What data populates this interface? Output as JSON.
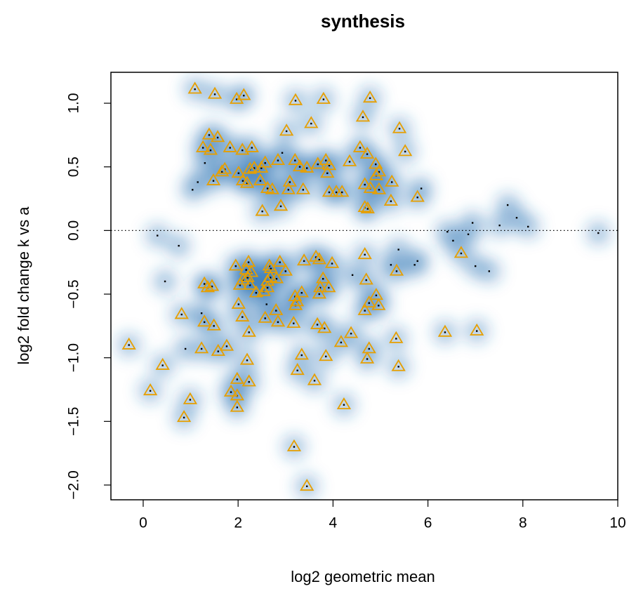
{
  "chart_data": {
    "type": "scatter",
    "title": "synthesis",
    "x_label": "log2 geometric mean",
    "y_label": "log2 fold change k vs a",
    "xlim": [
      -0.68,
      10.0
    ],
    "ylim": [
      -2.116,
      1.243
    ],
    "xticks": [
      0,
      2,
      4,
      6,
      8,
      10
    ],
    "yticks": [
      {
        "value": 1.0,
        "label": "1.0"
      },
      {
        "value": 0.5,
        "label": "0.5"
      },
      {
        "value": 0.0,
        "label": "0.0"
      },
      {
        "value": -0.5,
        "label": "−0.5"
      },
      {
        "value": -1.0,
        "label": "−1.0"
      },
      {
        "value": -1.5,
        "label": "−1.5"
      },
      {
        "value": -2.0,
        "label": "−2.0"
      }
    ],
    "hline": 0,
    "density_color": "#2a74b5",
    "series": [
      {
        "marker": "triangle",
        "color": "#e69f00",
        "x": [
          1.09,
          1.51,
          1.97,
          2.12,
          3.21,
          3.8,
          4.78,
          4.63,
          5.4,
          3.54,
          3.02,
          1.39,
          1.57,
          5.52,
          1.26,
          1.42,
          1.83,
          2.09,
          2.29,
          4.57,
          4.72,
          4.9,
          4.35,
          3.85,
          3.68,
          3.92,
          3.3,
          3.45,
          3.2,
          2.84,
          2.57,
          2.49,
          2.34,
          2.25,
          2.01,
          1.72,
          1.66,
          1.48,
          2.19,
          2.1,
          2.47,
          3.88,
          4.97,
          4.91,
          4.79,
          4.67,
          4.97,
          5.24,
          2.62,
          2.72,
          3.09,
          3.06,
          3.37,
          3.92,
          4.07,
          4.19,
          2.9,
          2.51,
          4.67,
          4.73,
          5.22,
          5.78,
          6.7,
          4.67,
          3.64,
          3.71,
          3.39,
          2.88,
          1.95,
          2.22,
          2.17,
          2.28,
          2.69,
          2.66,
          3.98,
          5.34,
          2.2,
          2.1,
          2.25,
          2.04,
          2.68,
          2.62,
          2.81,
          3.0,
          3.79,
          3.91,
          3.73,
          3.71,
          4.7,
          1.29,
          1.45,
          1.36,
          2.62,
          2.54,
          2.38,
          3.34,
          3.2,
          3.21,
          3.24,
          4.91,
          4.96,
          4.76,
          4.67,
          2.01,
          2.09,
          2.8,
          2.57,
          2.84,
          0.81,
          1.29,
          1.49,
          2.23,
          3.17,
          3.67,
          3.82,
          4.38,
          4.17,
          6.36,
          7.03,
          5.33,
          -0.3,
          1.76,
          1.58,
          1.23,
          4.76,
          4.72,
          3.34,
          3.85,
          2.19,
          0.41,
          5.38,
          3.25,
          1.98,
          2.23,
          3.61,
          0.15,
          1.85,
          1.98,
          0.99,
          4.23,
          1.98,
          0.86,
          3.18,
          3.45
        ],
        "y": [
          1.11,
          1.07,
          1.03,
          1.06,
          1.02,
          1.03,
          1.04,
          0.89,
          0.8,
          0.84,
          0.78,
          0.75,
          0.73,
          0.62,
          0.65,
          0.63,
          0.65,
          0.63,
          0.65,
          0.65,
          0.6,
          0.52,
          0.54,
          0.55,
          0.52,
          0.51,
          0.5,
          0.49,
          0.55,
          0.55,
          0.53,
          0.49,
          0.49,
          0.48,
          0.45,
          0.48,
          0.46,
          0.39,
          0.37,
          0.39,
          0.39,
          0.45,
          0.46,
          0.43,
          0.33,
          0.36,
          0.32,
          0.38,
          0.33,
          0.32,
          0.38,
          0.32,
          0.32,
          0.3,
          0.3,
          0.3,
          0.19,
          0.15,
          0.18,
          0.17,
          0.23,
          0.26,
          -0.18,
          -0.19,
          -0.21,
          -0.23,
          -0.24,
          -0.25,
          -0.28,
          -0.25,
          -0.31,
          -0.33,
          -0.3,
          -0.28,
          -0.26,
          -0.32,
          -0.37,
          -0.39,
          -0.43,
          -0.43,
          -0.37,
          -0.4,
          -0.38,
          -0.32,
          -0.38,
          -0.45,
          -0.45,
          -0.5,
          -0.39,
          -0.42,
          -0.44,
          -0.45,
          -0.45,
          -0.48,
          -0.49,
          -0.49,
          -0.52,
          -0.59,
          -0.56,
          -0.51,
          -0.59,
          -0.57,
          -0.63,
          -0.58,
          -0.68,
          -0.63,
          -0.69,
          -0.72,
          -0.66,
          -0.72,
          -0.75,
          -0.8,
          -0.73,
          -0.74,
          -0.77,
          -0.81,
          -0.88,
          -0.8,
          -0.79,
          -0.85,
          -0.9,
          -0.91,
          -0.95,
          -0.93,
          -0.93,
          -1.01,
          -0.98,
          -0.99,
          -1.02,
          -1.06,
          -1.07,
          -1.1,
          -1.17,
          -1.19,
          -1.18,
          -1.26,
          -1.27,
          -1.3,
          -1.33,
          -1.37,
          -1.39,
          -1.47,
          -1.7,
          -2.01
        ]
      },
      {
        "marker": "dot",
        "color": "#000000",
        "x": [
          0.3,
          0.75,
          0.46,
          1.04,
          1.15,
          1.3,
          2.93,
          6.41,
          6.53,
          6.85,
          6.94,
          7.0,
          7.29,
          7.51,
          7.68,
          7.87,
          8.11,
          9.59,
          5.78,
          5.72,
          5.38,
          5.22,
          4.41,
          1.23,
          0.89,
          2.6,
          5.86
        ],
        "y": [
          -0.04,
          -0.12,
          -0.4,
          0.32,
          0.38,
          0.53,
          0.61,
          -0.01,
          -0.08,
          -0.03,
          0.06,
          -0.28,
          -0.32,
          0.04,
          0.2,
          0.1,
          0.03,
          -0.02,
          -0.24,
          -0.27,
          -0.15,
          -0.27,
          -0.35,
          -0.65,
          -0.93,
          -0.58,
          0.33
        ]
      }
    ]
  }
}
